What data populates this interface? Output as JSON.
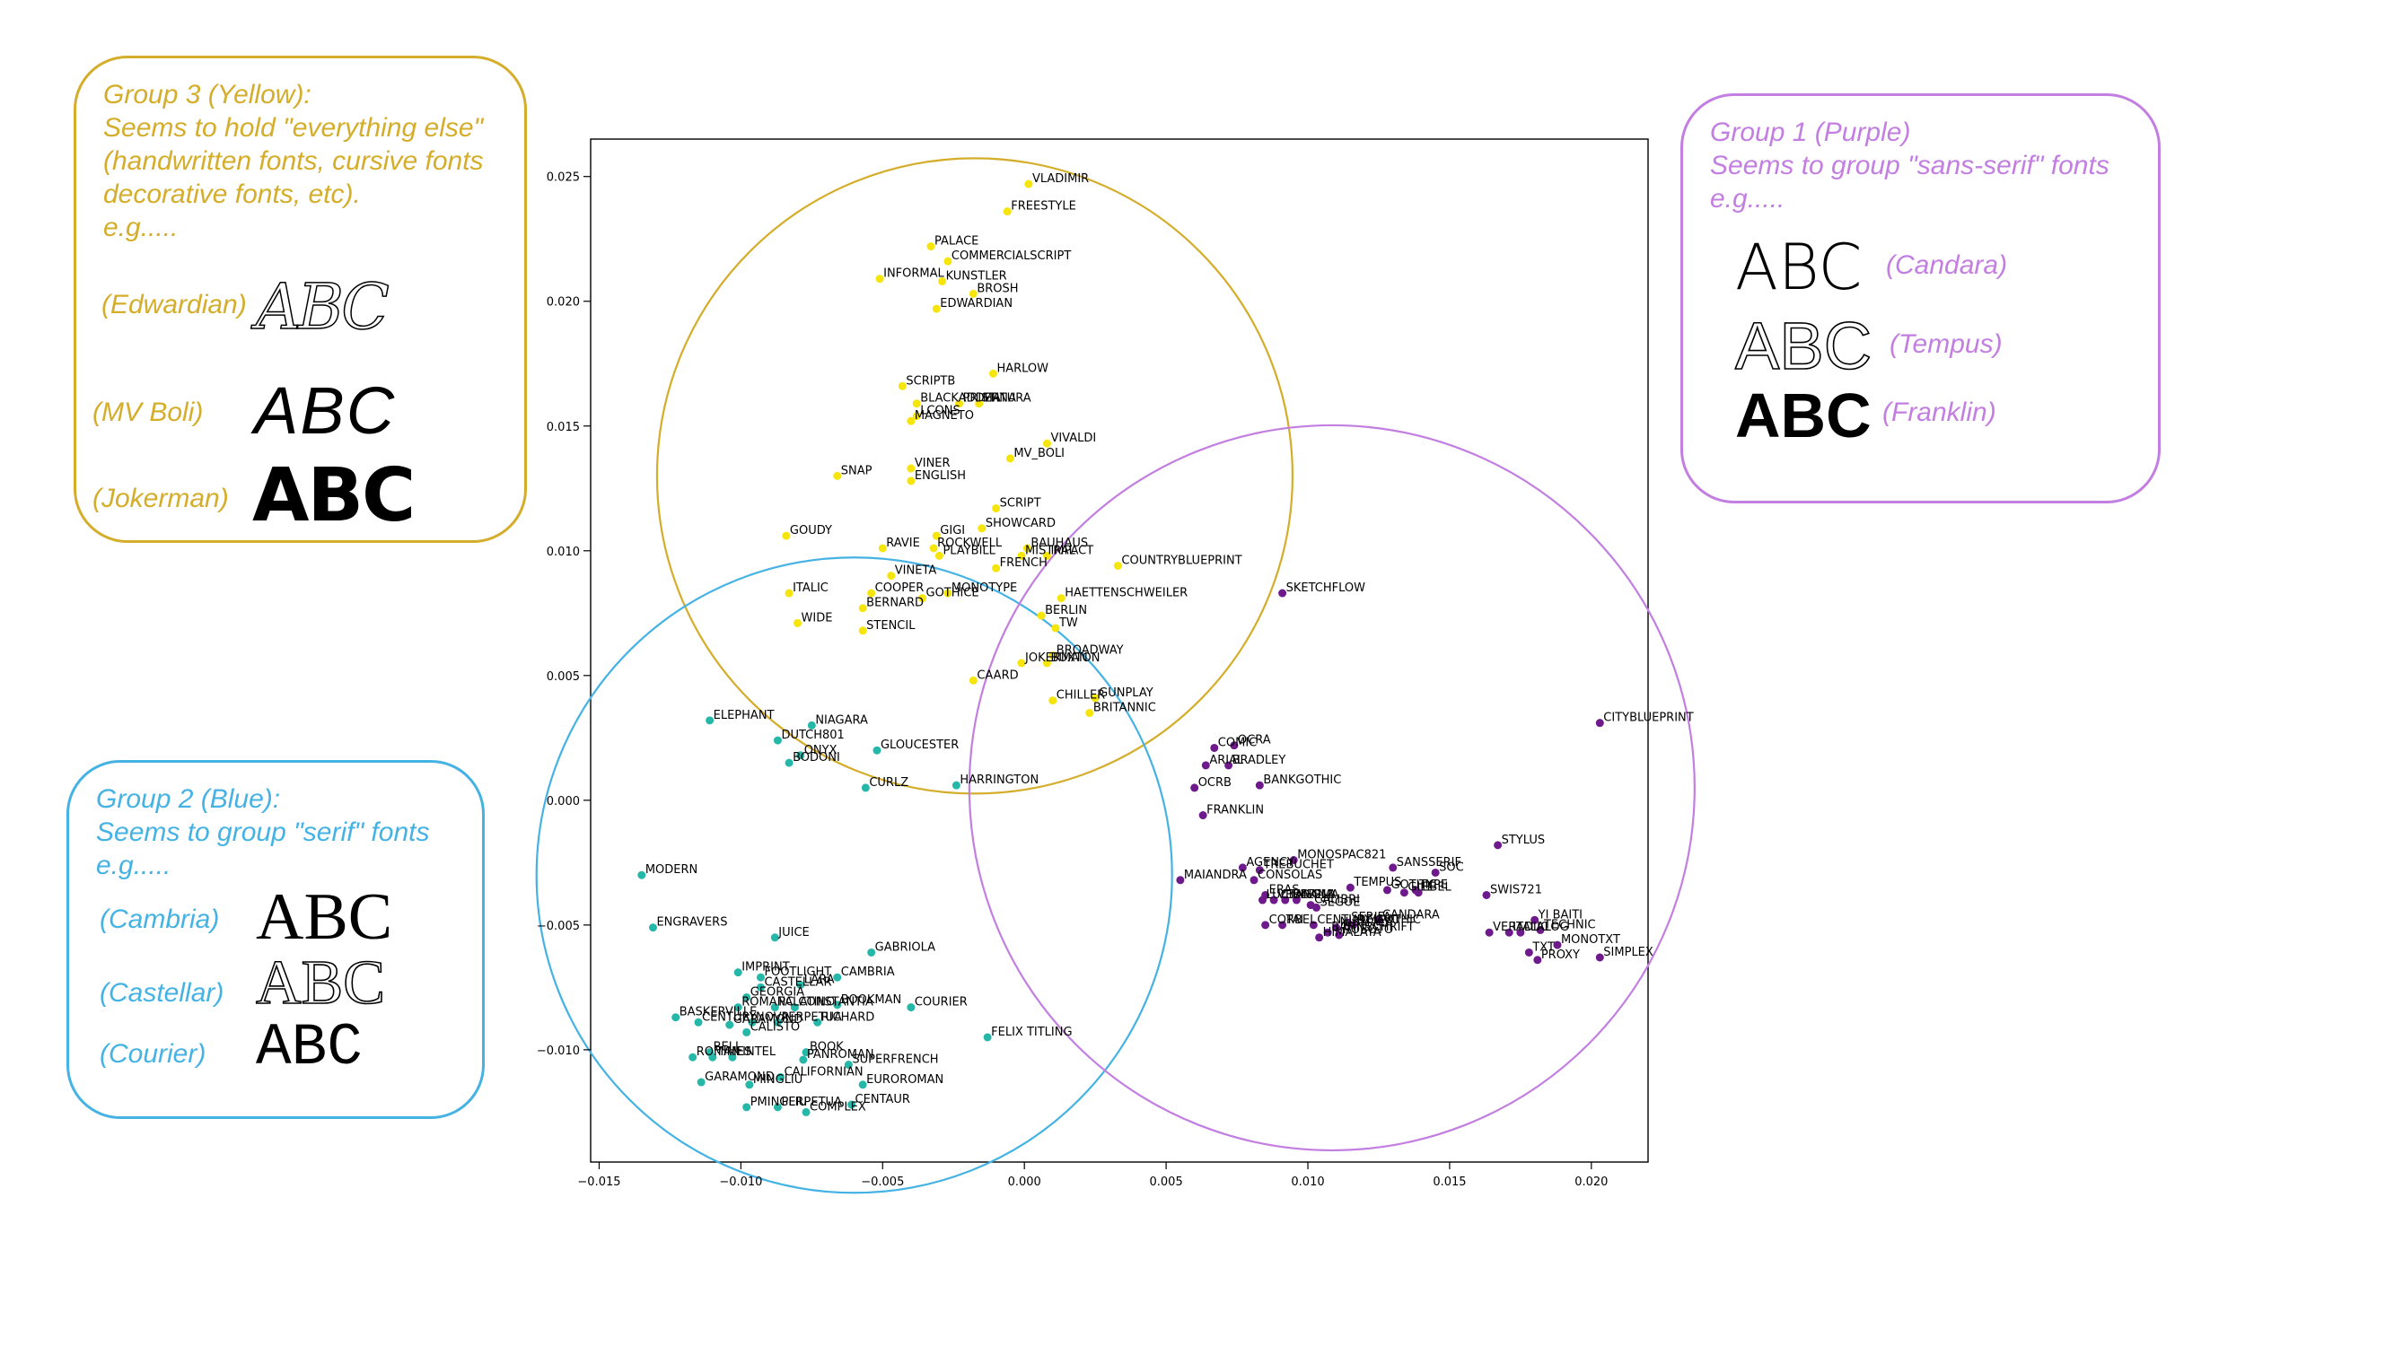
{
  "groups": {
    "yellow": {
      "title": "Group 3 (Yellow):",
      "lines": [
        "Seems to hold \"everything else\"",
        "(handwritten fonts, cursive fonts",
        "decorative fonts, etc).",
        "e.g....."
      ],
      "examples": [
        {
          "label": "(Edwardian)",
          "glyph": "ABC"
        },
        {
          "label": "(MV Boli)",
          "glyph": "ABC"
        },
        {
          "label": "(Jokerman)",
          "glyph": "ABC"
        }
      ],
      "color": "#d4ad2a"
    },
    "blue": {
      "title": "Group 2 (Blue):",
      "lines": [
        "Seems to group \"serif\" fonts",
        "e.g....."
      ],
      "examples": [
        {
          "label": "(Cambria)",
          "glyph": "ABC"
        },
        {
          "label": "(Castellar)",
          "glyph": "ABC"
        },
        {
          "label": "(Courier)",
          "glyph": "ABC"
        }
      ],
      "color": "#45b2e4"
    },
    "purple": {
      "title": "Group 1 (Purple)",
      "lines": [
        "Seems to group \"sans-serif\" fonts",
        "e.g....."
      ],
      "examples": [
        {
          "label": "(Candara)",
          "glyph": "ABC"
        },
        {
          "label": "(Tempus)",
          "glyph": "ABC"
        },
        {
          "label": "(Franklin)",
          "glyph": "ABC"
        }
      ],
      "color": "#c27ee0"
    }
  },
  "chart_data": {
    "type": "scatter",
    "xlim": [
      -0.0153,
      0.022
    ],
    "ylim": [
      -0.0145,
      0.0265
    ],
    "x_ticks": [
      -0.015,
      -0.01,
      -0.005,
      0.0,
      0.005,
      0.01,
      0.015,
      0.02
    ],
    "x_tick_labels": [
      "−0.015",
      "−0.010",
      "−0.005",
      "0.000",
      "0.005",
      "0.010",
      "0.015",
      "0.020"
    ],
    "y_ticks": [
      -0.01,
      -0.005,
      0.0,
      0.005,
      0.01,
      0.015,
      0.02,
      0.025
    ],
    "y_tick_labels": [
      "−0.010",
      "−0.005",
      "0.000",
      "0.005",
      "0.010",
      "0.015",
      "0.020",
      "0.025"
    ],
    "grid": false,
    "series": [
      {
        "color": "#f5e50a",
        "points": [
          [
            "VLADIMIR",
            0.00015,
            0.0247
          ],
          [
            "FREESTYLE",
            -0.0006,
            0.0236
          ],
          [
            "PALACE",
            -0.0033,
            0.0222
          ],
          [
            "COMMERCIALSCRIPT",
            -0.0027,
            0.0216
          ],
          [
            "INFORMAL",
            -0.0051,
            0.0209
          ],
          [
            "KUNSTLER",
            -0.0029,
            0.0208
          ],
          [
            "BROSH",
            -0.0018,
            0.0203
          ],
          [
            "EDWARDIAN",
            -0.0031,
            0.0197
          ],
          [
            "HARLOW",
            -0.0011,
            0.0171
          ],
          [
            "SCRIPTB",
            -0.0043,
            0.0166
          ],
          [
            "BLACKADDER",
            -0.0038,
            0.0159
          ],
          [
            "PRISTINA",
            -0.0023,
            0.0159
          ],
          [
            "MATURA",
            -0.0016,
            0.0159
          ],
          [
            "LCONS",
            -0.0038,
            0.0154
          ],
          [
            "MAGNETO",
            -0.004,
            0.0152
          ],
          [
            "VIVALDI",
            0.0008,
            0.0143
          ],
          [
            "MV_BOLI",
            -0.0005,
            0.0137
          ],
          [
            "SNAP",
            -0.0066,
            0.013
          ],
          [
            "VINER",
            -0.004,
            0.0133
          ],
          [
            "ENGLISH",
            -0.004,
            0.0128
          ],
          [
            "SCRIPT",
            -0.001,
            0.0117
          ],
          [
            "SHOWCARD",
            -0.0015,
            0.0109
          ],
          [
            "GOUDY",
            -0.0084,
            0.0106
          ],
          [
            "GIGI",
            -0.0031,
            0.0106
          ],
          [
            "RAVIE",
            -0.005,
            0.0101
          ],
          [
            "ROCKWELL",
            -0.0032,
            0.0101
          ],
          [
            "BAUHAUS",
            0.0001,
            0.0101
          ],
          [
            "PLAYBILL",
            -0.003,
            0.0098
          ],
          [
            "MISTRAL",
            -0.0001,
            0.0098
          ],
          [
            "IMPACT",
            0.0008,
            0.0098
          ],
          [
            "COUNTRYBLUEPRINT",
            0.0033,
            0.0094
          ],
          [
            "FRENCH",
            -0.001,
            0.0093
          ],
          [
            "VINETA",
            -0.0047,
            0.009
          ],
          [
            "ITALIC",
            -0.0083,
            0.0083
          ],
          [
            "COOPER",
            -0.0054,
            0.0083
          ],
          [
            "MONOTYPE",
            -0.0027,
            0.0083
          ],
          [
            "GOTHICE",
            -0.0036,
            0.0081
          ],
          [
            "HAETTENSCHWEILER",
            0.0013,
            0.0081
          ],
          [
            "BERNARD",
            -0.0057,
            0.0077
          ],
          [
            "BERLIN",
            0.0006,
            0.0074
          ],
          [
            "WIDE",
            -0.008,
            0.0071
          ],
          [
            "STENCIL",
            -0.0057,
            0.0068
          ],
          [
            "TW",
            0.0011,
            0.0069
          ],
          [
            "BROADWAY",
            0.001,
            0.0058
          ],
          [
            "JOKERMAN",
            -0.0001,
            0.0055
          ],
          [
            "BUXTON",
            0.0008,
            0.0055
          ],
          [
            "CAARD",
            -0.0018,
            0.0048
          ],
          [
            "CHILLER",
            0.001,
            0.004
          ],
          [
            "GUNPLAY",
            0.0025,
            0.0041
          ],
          [
            "BRITANNIC",
            0.0023,
            0.0035
          ]
        ]
      },
      {
        "color": "#25b8a8",
        "points": [
          [
            "ELEPHANT",
            -0.0111,
            0.0032
          ],
          [
            "NIAGARA",
            -0.0075,
            0.003
          ],
          [
            "DUTCH801",
            -0.0087,
            0.0024
          ],
          [
            "GLOUCESTER",
            -0.0052,
            0.002
          ],
          [
            "ONYX",
            -0.0079,
            0.0018
          ],
          [
            "BODONI",
            -0.0083,
            0.0015
          ],
          [
            "CURLZ",
            -0.0056,
            0.0005
          ],
          [
            "HARRINGTON",
            -0.0024,
            0.0006
          ],
          [
            "MODERN",
            -0.0135,
            -0.003
          ],
          [
            "ENGRAVERS",
            -0.0131,
            -0.0051
          ],
          [
            "JUICE",
            -0.0088,
            -0.0055
          ],
          [
            "GABRIOLA",
            -0.0054,
            -0.0061
          ],
          [
            "IMPRINT",
            -0.0101,
            -0.0069
          ],
          [
            "FOOTLIGHT",
            -0.0093,
            -0.0071
          ],
          [
            "CAMBRIA",
            -0.0066,
            -0.0071
          ],
          [
            "LARA",
            -0.0079,
            -0.0074
          ],
          [
            "CASTELLAR",
            -0.0093,
            -0.0075
          ],
          [
            "GEORGIA",
            -0.0098,
            -0.0079
          ],
          [
            "BOOKMAN",
            -0.0066,
            -0.0082
          ],
          [
            "COURIER",
            -0.004,
            -0.0083
          ],
          [
            "ROMANC",
            -0.0101,
            -0.0083
          ],
          [
            "PALATINO",
            -0.0088,
            -0.0083
          ],
          [
            "CONSTANTIA",
            -0.0081,
            -0.0083
          ],
          [
            "BASKERVILLE",
            -0.0123,
            -0.0087
          ],
          [
            "CENTURY",
            -0.0115,
            -0.0089
          ],
          [
            "GARAMOND",
            -0.0104,
            -0.009
          ],
          [
            "NOVA",
            -0.0096,
            -0.0089
          ],
          [
            "PERPETUA",
            -0.0087,
            -0.0089
          ],
          [
            "RICHARD",
            -0.0073,
            -0.0089
          ],
          [
            "FELIX TITLING",
            -0.0013,
            -0.0095
          ],
          [
            "CALISTO",
            -0.0098,
            -0.0093
          ],
          [
            "BELL",
            -0.0111,
            -0.0101
          ],
          [
            "BOOK",
            -0.0077,
            -0.0101
          ],
          [
            "ROMAN",
            -0.0117,
            -0.0103
          ],
          [
            "TIMES",
            -0.011,
            -0.0103
          ],
          [
            "LINTEL",
            -0.0103,
            -0.0103
          ],
          [
            "PANROMAN",
            -0.0078,
            -0.0104
          ],
          [
            "SUPERFRENCH",
            -0.0062,
            -0.0106
          ],
          [
            "GARAMOND",
            -0.0114,
            -0.0113
          ],
          [
            "CALIFORNIAN",
            -0.0086,
            -0.0111
          ],
          [
            "MINGLIU",
            -0.0097,
            -0.0114
          ],
          [
            "EUROROMAN",
            -0.0057,
            -0.0114
          ],
          [
            "CENTAUR",
            -0.0061,
            -0.0122
          ],
          [
            "PMINGLIU",
            -0.0098,
            -0.0123
          ],
          [
            "PERPETUA",
            -0.0087,
            -0.0123
          ],
          [
            "COMPLEX",
            -0.0077,
            -0.0125
          ]
        ]
      },
      {
        "color": "#6e1a8c",
        "points": [
          [
            "SKETCHFLOW",
            0.0091,
            0.0083
          ],
          [
            "CITYBLUEPRINT",
            0.0203,
            0.0031
          ],
          [
            "COMIC",
            0.0067,
            0.0021
          ],
          [
            "OCRA",
            0.0074,
            0.0022
          ],
          [
            "ARIAL",
            0.0064,
            0.0014
          ],
          [
            "BRADLEY",
            0.0072,
            0.0014
          ],
          [
            "BANKGOTHIC",
            0.0083,
            0.0006
          ],
          [
            "OCRB",
            0.006,
            0.0005
          ],
          [
            "FRANKLIN",
            0.0063,
            -0.0006
          ],
          [
            "STYLUS",
            0.0167,
            -0.0018
          ],
          [
            "MONOSPAC821",
            0.0095,
            -0.0024
          ],
          [
            "AGENCY",
            0.0077,
            -0.0027
          ],
          [
            "TREBUCHET",
            0.0083,
            -0.0028
          ],
          [
            "SANSSERIF",
            0.013,
            -0.0027
          ],
          [
            "SOC",
            0.0145,
            -0.0029
          ],
          [
            "CONSOLAS",
            0.0081,
            -0.0032
          ],
          [
            "MAIANDRA",
            0.0055,
            -0.0032
          ],
          [
            "TEMPUS",
            0.0115,
            -0.0035
          ],
          [
            "GOTHIC",
            0.0128,
            -0.0036
          ],
          [
            "TYPE",
            0.0138,
            -0.0036
          ],
          [
            "GILL",
            0.0134,
            -0.0037
          ],
          [
            "EBEL",
            0.0139,
            -0.0037
          ],
          [
            "SWIS721",
            0.0163,
            -0.0038
          ],
          [
            "ERAS",
            0.0085,
            -0.0038
          ],
          [
            "LUCIDA",
            0.0084,
            -0.004
          ],
          [
            "VERDANA",
            0.0088,
            -0.004
          ],
          [
            "TAHOMA",
            0.0092,
            -0.004
          ],
          [
            "LEELA",
            0.0096,
            -0.004
          ],
          [
            "CALIBRI",
            0.0101,
            -0.0042
          ],
          [
            "SEGOE",
            0.0103,
            -0.0043
          ],
          [
            "CANDARA",
            0.0125,
            -0.0048
          ],
          [
            "SERIFA",
            0.0114,
            -0.0049
          ],
          [
            "CORBEL",
            0.0085,
            -0.005
          ],
          [
            "TAI",
            0.0091,
            -0.005
          ],
          [
            "CENTURY GOTHIC",
            0.0102,
            -0.005
          ],
          [
            "NIRMALA",
            0.011,
            -0.0051
          ],
          [
            "DEJAVU",
            0.0116,
            -0.005
          ],
          [
            "BAHNSCHRIFT",
            0.0107,
            -0.0053
          ],
          [
            "ROBOTO",
            0.0111,
            -0.0054
          ],
          [
            "HIMALAYA",
            0.0104,
            -0.0055
          ],
          [
            "YI BAITI",
            0.018,
            -0.0048
          ],
          [
            "TECHNIC",
            0.0182,
            -0.0052
          ],
          [
            "VERA",
            0.0164,
            -0.0053
          ],
          [
            "ITALIC",
            0.0171,
            -0.0053
          ],
          [
            "DIALOG",
            0.0175,
            -0.0053
          ],
          [
            "MONOTXT",
            0.0188,
            -0.0058
          ],
          [
            "TXT",
            0.0178,
            -0.0061
          ],
          [
            "SIMPLEX",
            0.0203,
            -0.0063
          ],
          [
            "PROXY",
            0.0181,
            -0.0064
          ]
        ]
      }
    ],
    "circles": [
      {
        "color": "#d4ad2a",
        "cx": -0.00175,
        "cy": 0.013
      },
      {
        "color": "#45b2e4",
        "cx": -0.006,
        "cy": -0.003
      },
      {
        "color": "#c27ee0",
        "cx": 0.01085,
        "cy": 0.0005
      }
    ]
  }
}
